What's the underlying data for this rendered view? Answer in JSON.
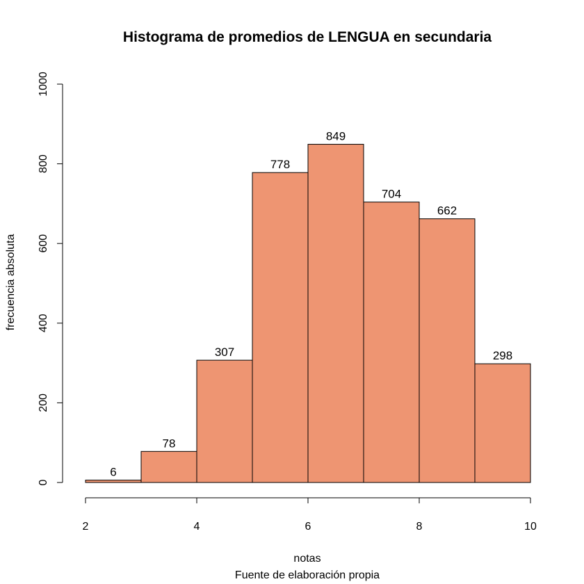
{
  "chart_data": {
    "type": "bar",
    "subtype": "histogram",
    "title": "Histograma de promedios de LENGUA en secundaria",
    "xlabel": "notas",
    "subtitle": "Fuente de elaboración propia",
    "ylabel": "frecuencia absoluta",
    "bins": [
      {
        "from": 2,
        "to": 3,
        "value": 6
      },
      {
        "from": 3,
        "to": 4,
        "value": 78
      },
      {
        "from": 4,
        "to": 5,
        "value": 307
      },
      {
        "from": 5,
        "to": 6,
        "value": 778
      },
      {
        "from": 6,
        "to": 7,
        "value": 849
      },
      {
        "from": 7,
        "to": 8,
        "value": 704
      },
      {
        "from": 8,
        "to": 9,
        "value": 662
      },
      {
        "from": 9,
        "to": 10,
        "value": 298
      }
    ],
    "xlim": [
      2,
      10
    ],
    "ylim": [
      0,
      1000
    ],
    "x_ticks": [
      2,
      4,
      6,
      8,
      10
    ],
    "y_ticks": [
      0,
      200,
      400,
      600,
      800,
      1000
    ],
    "bar_color": "#EE9572",
    "grid": false,
    "legend": "none"
  }
}
